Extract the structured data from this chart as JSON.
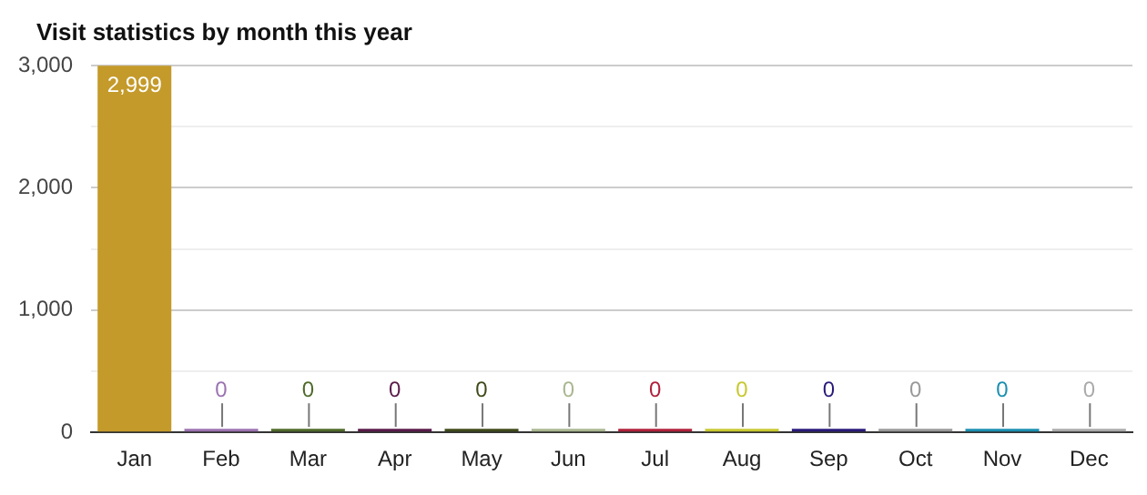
{
  "chart_data": {
    "type": "bar",
    "title": "Visit statistics by month this year",
    "categories": [
      "Jan",
      "Feb",
      "Mar",
      "Apr",
      "May",
      "Jun",
      "Jul",
      "Aug",
      "Sep",
      "Oct",
      "Nov",
      "Dec"
    ],
    "values": [
      2999,
      0,
      0,
      0,
      0,
      0,
      0,
      0,
      0,
      0,
      0,
      0
    ],
    "colors": [
      "#c49a2a",
      "#9b72b0",
      "#4f6b2a",
      "#5a1a4a",
      "#3f4a1a",
      "#a9b78f",
      "#b0203a",
      "#c8c830",
      "#2a1a7a",
      "#999999",
      "#1a8fb0",
      "#aaaaaa"
    ],
    "value_labels": [
      "2,999",
      "0",
      "0",
      "0",
      "0",
      "0",
      "0",
      "0",
      "0",
      "0",
      "0",
      "0"
    ],
    "ylim": [
      0,
      3000
    ],
    "yticks": [
      0,
      {
        "value": 500,
        "label": null
      },
      {
        "value": 1000,
        "label": "1,000"
      },
      {
        "value": 1500,
        "label": null
      },
      {
        "value": 2000,
        "label": "2,000"
      },
      {
        "value": 2500,
        "label": null
      },
      {
        "value": 3000,
        "label": "3,000"
      }
    ],
    "grid": "y",
    "legend": false
  }
}
